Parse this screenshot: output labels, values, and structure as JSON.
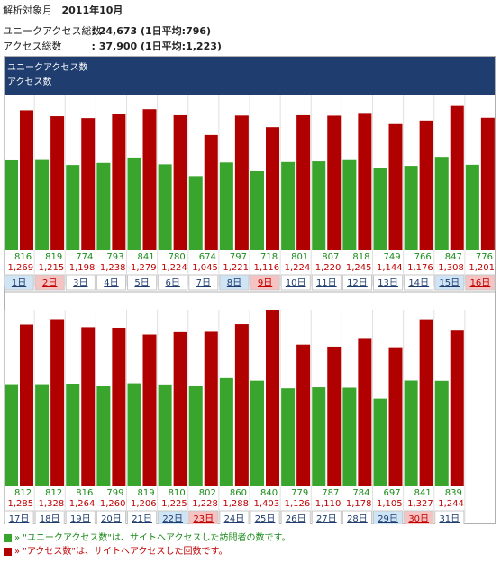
{
  "header": {
    "period_label": "解析対象月",
    "period_value": "2011年10月",
    "unique_label": "ユニークアクセス総数",
    "unique_value": ": 24,673 (1日平均:796)",
    "access_label": "アクセス総数",
    "access_value": ": 37,900 (1日平均:1,223)"
  },
  "chart_data": {
    "type": "bar",
    "legend_box": [
      "ユニークアクセス数",
      "アクセス数"
    ],
    "colors": {
      "unique": "#3aa52c",
      "access": "#b00000",
      "banner": "#1f3d6e",
      "sat_bg": "#cfe5f6",
      "sun_bg": "#f6c3c3"
    },
    "categories": [
      "1日",
      "2日",
      "3日",
      "4日",
      "5日",
      "6日",
      "7日",
      "8日",
      "9日",
      "10日",
      "11日",
      "12日",
      "13日",
      "14日",
      "15日",
      "16日",
      "17日",
      "18日",
      "19日",
      "20日",
      "21日",
      "22日",
      "23日",
      "24日",
      "25日",
      "26日",
      "27日",
      "28日",
      "29日",
      "30日",
      "31日"
    ],
    "day_type": [
      "sat",
      "sun",
      "",
      "",
      "",
      "",
      "",
      "sat",
      "sun",
      "",
      "",
      "",
      "",
      "",
      "sat",
      "sun",
      "",
      "",
      "",
      "",
      "",
      "sat",
      "sun",
      "",
      "",
      "",
      "",
      "",
      "sat",
      "sun",
      ""
    ],
    "series": [
      {
        "name": "ユニークアクセス数",
        "values": [
          816,
          819,
          774,
          793,
          841,
          780,
          674,
          797,
          718,
          801,
          807,
          818,
          749,
          766,
          847,
          776,
          812,
          812,
          816,
          799,
          819,
          810,
          802,
          860,
          840,
          779,
          787,
          784,
          697,
          841,
          839
        ]
      },
      {
        "name": "アクセス数",
        "values": [
          1269,
          1215,
          1198,
          1238,
          1279,
          1224,
          1045,
          1221,
          1116,
          1224,
          1220,
          1245,
          1144,
          1176,
          1308,
          1201,
          1285,
          1328,
          1264,
          1260,
          1206,
          1225,
          1228,
          1288,
          1403,
          1126,
          1110,
          1178,
          1105,
          1327,
          1244
        ]
      }
    ],
    "unique_labels": [
      "816",
      "819",
      "774",
      "793",
      "841",
      "780",
      "674",
      "797",
      "718",
      "801",
      "807",
      "818",
      "749",
      "766",
      "847",
      "776",
      "812",
      "812",
      "816",
      "799",
      "819",
      "810",
      "802",
      "860",
      "840",
      "779",
      "787",
      "784",
      "697",
      "841",
      "839"
    ],
    "access_labels": [
      "1,269",
      "1,215",
      "1,198",
      "1,238",
      "1,279",
      "1,224",
      "1,045",
      "1,221",
      "1,116",
      "1,224",
      "1,220",
      "1,245",
      "1,144",
      "1,176",
      "1,308",
      "1,201",
      "1,285",
      "1,328",
      "1,264",
      "1,260",
      "1,206",
      "1,225",
      "1,228",
      "1,288",
      "1,403",
      "1,126",
      "1,110",
      "1,178",
      "1,105",
      "1,327",
      "1,244"
    ],
    "ylim": [
      0,
      1403
    ]
  },
  "legend": {
    "unique_text": "» \"ユニークアクセス数\"は、サイトへアクセスした訪問者の数です。",
    "access_text": "» \"アクセス数\"は、サイトへアクセスした回数です。"
  }
}
